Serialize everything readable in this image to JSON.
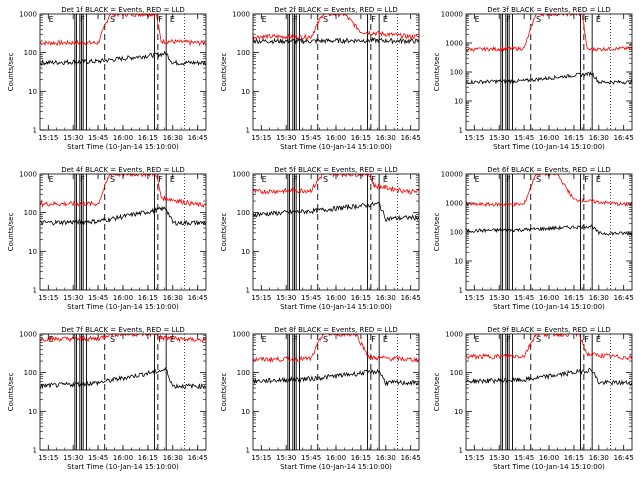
{
  "chart_data": [
    {
      "type": "line",
      "title": "Det 1f BLACK = Events, RED = LLD",
      "xlabel": "Start Time (10-Jan-14 15:10:00)",
      "ylabel": "Counts/sec",
      "yscale": "log",
      "ylim": [
        1,
        1000
      ],
      "x_ticks": [
        "15:15",
        "15:30",
        "15:45",
        "16:00",
        "16:15",
        "16:30",
        "16:45"
      ],
      "y_ticks": [
        "1",
        "10",
        "100",
        "1000"
      ],
      "markers": [
        {
          "label": "E",
          "time": "15:14"
        },
        {
          "label": "F",
          "time": "15:33"
        },
        {
          "label": "S",
          "time": "15:51"
        },
        {
          "label": "F",
          "time": "16:20"
        },
        {
          "label": "E",
          "time": "16:27"
        }
      ],
      "series": [
        {
          "name": "RED = LLD",
          "color": "#ff0000",
          "values": [
            {
              "time": "15:10",
              "value": 180
            },
            {
              "time": "15:45",
              "value": 180
            },
            {
              "time": "15:52",
              "value": 1000
            },
            {
              "time": "16:20",
              "value": 1000
            },
            {
              "time": "16:23",
              "value": 200
            },
            {
              "time": "16:45",
              "value": 180
            }
          ]
        },
        {
          "name": "BLACK = Events",
          "color": "#000000",
          "values": [
            {
              "time": "15:10",
              "value": 55
            },
            {
              "time": "15:45",
              "value": 60
            },
            {
              "time": "16:26",
              "value": 95
            },
            {
              "time": "16:30",
              "value": 55
            },
            {
              "time": "16:45",
              "value": 55
            }
          ]
        }
      ]
    },
    {
      "type": "line",
      "title": "Det 2f BLACK = Events, RED = LLD",
      "xlabel": "Start Time (10-Jan-14 15:10:00)",
      "ylabel": "Counts/sec",
      "yscale": "log",
      "ylim": [
        1,
        1000
      ],
      "x_ticks": [
        "15:15",
        "15:30",
        "15:45",
        "16:00",
        "16:15",
        "16:30",
        "16:45"
      ],
      "y_ticks": [
        "1",
        "10",
        "100",
        "1000"
      ],
      "markers": [
        {
          "label": "E",
          "time": "15:14"
        },
        {
          "label": "F",
          "time": "15:33"
        },
        {
          "label": "S",
          "time": "15:51"
        },
        {
          "label": "F",
          "time": "16:20"
        },
        {
          "label": "E",
          "time": "16:27"
        }
      ],
      "series": [
        {
          "name": "RED = LLD",
          "color": "#ff0000",
          "values": [
            {
              "time": "15:10",
              "value": 260
            },
            {
              "time": "15:45",
              "value": 260
            },
            {
              "time": "15:52",
              "value": 1000
            },
            {
              "time": "16:05",
              "value": 1000
            },
            {
              "time": "16:15",
              "value": 350
            },
            {
              "time": "16:45",
              "value": 260
            }
          ]
        },
        {
          "name": "BLACK = Events",
          "color": "#000000",
          "values": [
            {
              "time": "15:10",
              "value": 200
            },
            {
              "time": "15:45",
              "value": 200
            },
            {
              "time": "16:20",
              "value": 210
            },
            {
              "time": "16:45",
              "value": 200
            }
          ]
        }
      ]
    },
    {
      "type": "line",
      "title": "Det 3f BLACK = Events, RED = LLD",
      "xlabel": "Start Time (10-Jan-14 15:10:00)",
      "ylabel": "Counts/sec",
      "yscale": "log",
      "ylim": [
        1,
        10000
      ],
      "x_ticks": [
        "15:15",
        "15:30",
        "15:45",
        "16:00",
        "16:15",
        "16:30",
        "16:45"
      ],
      "y_ticks": [
        "1",
        "10",
        "100",
        "1000",
        "10000"
      ],
      "markers": [
        {
          "label": "E",
          "time": "15:14"
        },
        {
          "label": "F",
          "time": "15:33"
        },
        {
          "label": "S",
          "time": "15:51"
        },
        {
          "label": "F",
          "time": "16:20"
        },
        {
          "label": "E",
          "time": "16:27"
        }
      ],
      "series": [
        {
          "name": "RED = LLD",
          "color": "#ff0000",
          "values": [
            {
              "time": "15:10",
              "value": 600
            },
            {
              "time": "15:45",
              "value": 650
            },
            {
              "time": "15:52",
              "value": 10000
            },
            {
              "time": "16:20",
              "value": 10000
            },
            {
              "time": "16:23",
              "value": 600
            },
            {
              "time": "16:45",
              "value": 650
            }
          ]
        },
        {
          "name": "BLACK = Events",
          "color": "#000000",
          "values": [
            {
              "time": "15:10",
              "value": 45
            },
            {
              "time": "15:45",
              "value": 50
            },
            {
              "time": "16:26",
              "value": 90
            },
            {
              "time": "16:30",
              "value": 45
            },
            {
              "time": "16:45",
              "value": 45
            }
          ]
        }
      ]
    },
    {
      "type": "line",
      "title": "Det 4f BLACK = Events, RED = LLD",
      "xlabel": "Start Time (10-Jan-14 15:10:00)",
      "ylabel": "Counts/sec",
      "yscale": "log",
      "ylim": [
        1,
        1000
      ],
      "x_ticks": [
        "15:15",
        "15:30",
        "15:45",
        "16:00",
        "16:15",
        "16:30",
        "16:45"
      ],
      "y_ticks": [
        "1",
        "10",
        "100",
        "1000"
      ],
      "markers": [
        {
          "label": "E",
          "time": "15:14"
        },
        {
          "label": "F",
          "time": "15:33"
        },
        {
          "label": "S",
          "time": "15:51"
        },
        {
          "label": "F",
          "time": "16:20"
        },
        {
          "label": "E",
          "time": "16:27"
        }
      ],
      "series": [
        {
          "name": "RED = LLD",
          "color": "#ff0000",
          "values": [
            {
              "time": "15:10",
              "value": 170
            },
            {
              "time": "15:45",
              "value": 170
            },
            {
              "time": "15:52",
              "value": 1000
            },
            {
              "time": "16:20",
              "value": 1000
            },
            {
              "time": "16:23",
              "value": 250
            },
            {
              "time": "16:45",
              "value": 160
            }
          ]
        },
        {
          "name": "BLACK = Events",
          "color": "#000000",
          "values": [
            {
              "time": "15:10",
              "value": 55
            },
            {
              "time": "15:45",
              "value": 60
            },
            {
              "time": "16:26",
              "value": 130
            },
            {
              "time": "16:30",
              "value": 55
            },
            {
              "time": "16:45",
              "value": 55
            }
          ]
        }
      ]
    },
    {
      "type": "line",
      "title": "Det 5f BLACK = Events, RED = LLD",
      "xlabel": "Start Time (10-Jan-14 15:10:00)",
      "ylabel": "Counts/sec",
      "yscale": "log",
      "ylim": [
        1,
        1000
      ],
      "x_ticks": [
        "15:15",
        "15:30",
        "15:45",
        "16:00",
        "16:15",
        "16:30",
        "16:45"
      ],
      "y_ticks": [
        "1",
        "10",
        "100",
        "1000"
      ],
      "markers": [
        {
          "label": "E",
          "time": "15:14"
        },
        {
          "label": "F",
          "time": "15:33"
        },
        {
          "label": "S",
          "time": "15:51"
        },
        {
          "label": "F",
          "time": "16:20"
        },
        {
          "label": "E",
          "time": "16:27"
        }
      ],
      "series": [
        {
          "name": "RED = LLD",
          "color": "#ff0000",
          "values": [
            {
              "time": "15:10",
              "value": 350
            },
            {
              "time": "15:45",
              "value": 380
            },
            {
              "time": "15:52",
              "value": 1000
            },
            {
              "time": "16:20",
              "value": 1000
            },
            {
              "time": "16:23",
              "value": 500
            },
            {
              "time": "16:45",
              "value": 350
            }
          ]
        },
        {
          "name": "BLACK = Events",
          "color": "#000000",
          "values": [
            {
              "time": "15:10",
              "value": 90
            },
            {
              "time": "15:45",
              "value": 110
            },
            {
              "time": "16:26",
              "value": 170
            },
            {
              "time": "16:30",
              "value": 70
            },
            {
              "time": "16:45",
              "value": 75
            }
          ]
        }
      ]
    },
    {
      "type": "line",
      "title": "Det 6f BLACK = Events, RED = LLD",
      "xlabel": "Start Time (10-Jan-14 15:10:00)",
      "ylabel": "Counts/sec",
      "yscale": "log",
      "ylim": [
        1,
        10000
      ],
      "x_ticks": [
        "15:15",
        "15:30",
        "15:45",
        "16:00",
        "16:15",
        "16:30",
        "16:45"
      ],
      "y_ticks": [
        "1",
        "10",
        "100",
        "1000",
        "10000"
      ],
      "markers": [
        {
          "label": "E",
          "time": "15:14"
        },
        {
          "label": "F",
          "time": "15:33"
        },
        {
          "label": "S",
          "time": "15:51"
        },
        {
          "label": "F",
          "time": "16:20"
        },
        {
          "label": "E",
          "time": "16:27"
        }
      ],
      "series": [
        {
          "name": "RED = LLD",
          "color": "#ff0000",
          "values": [
            {
              "time": "15:10",
              "value": 900
            },
            {
              "time": "15:45",
              "value": 900
            },
            {
              "time": "15:52",
              "value": 10000
            },
            {
              "time": "16:05",
              "value": 10000
            },
            {
              "time": "16:15",
              "value": 1300
            },
            {
              "time": "16:45",
              "value": 900
            }
          ]
        },
        {
          "name": "BLACK = Events",
          "color": "#000000",
          "values": [
            {
              "time": "15:10",
              "value": 110
            },
            {
              "time": "15:45",
              "value": 120
            },
            {
              "time": "16:26",
              "value": 160
            },
            {
              "time": "16:30",
              "value": 90
            },
            {
              "time": "16:45",
              "value": 90
            }
          ]
        }
      ]
    },
    {
      "type": "line",
      "title": "Det 7f BLACK = Events, RED = LLD",
      "xlabel": "Start Time (10-Jan-14 15:10:00)",
      "ylabel": "Counts/sec",
      "yscale": "log",
      "ylim": [
        1,
        1000
      ],
      "x_ticks": [
        "15:15",
        "15:30",
        "15:45",
        "16:00",
        "16:15",
        "16:30",
        "16:45"
      ],
      "y_ticks": [
        "1",
        "10",
        "100",
        "1000"
      ],
      "markers": [
        {
          "label": "E",
          "time": "15:14"
        },
        {
          "label": "F",
          "time": "15:33"
        },
        {
          "label": "S",
          "time": "15:51"
        },
        {
          "label": "F",
          "time": "16:20"
        },
        {
          "label": "E",
          "time": "16:27"
        }
      ],
      "series": [
        {
          "name": "RED = LLD",
          "color": "#ff0000",
          "values": [
            {
              "time": "15:10",
              "value": 750
            },
            {
              "time": "15:45",
              "value": 750
            },
            {
              "time": "15:52",
              "value": 1000
            },
            {
              "time": "16:20",
              "value": 1000
            },
            {
              "time": "16:23",
              "value": 800
            },
            {
              "time": "16:45",
              "value": 700
            }
          ]
        },
        {
          "name": "BLACK = Events",
          "color": "#000000",
          "values": [
            {
              "time": "15:10",
              "value": 45
            },
            {
              "time": "15:45",
              "value": 55
            },
            {
              "time": "16:26",
              "value": 120
            },
            {
              "time": "16:30",
              "value": 45
            },
            {
              "time": "16:45",
              "value": 45
            }
          ]
        }
      ]
    },
    {
      "type": "line",
      "title": "Det 8f BLACK = Events, RED = LLD",
      "xlabel": "Start Time (10-Jan-14 15:10:00)",
      "ylabel": "Counts/sec",
      "yscale": "log",
      "ylim": [
        1,
        1000
      ],
      "x_ticks": [
        "15:15",
        "15:30",
        "15:45",
        "16:00",
        "16:15",
        "16:30",
        "16:45"
      ],
      "y_ticks": [
        "1",
        "10",
        "100",
        "1000"
      ],
      "markers": [
        {
          "label": "E",
          "time": "15:14"
        },
        {
          "label": "F",
          "time": "15:33"
        },
        {
          "label": "S",
          "time": "15:51"
        },
        {
          "label": "F",
          "time": "16:20"
        },
        {
          "label": "E",
          "time": "16:27"
        }
      ],
      "series": [
        {
          "name": "RED = LLD",
          "color": "#ff0000",
          "values": [
            {
              "time": "15:10",
              "value": 220
            },
            {
              "time": "15:45",
              "value": 230
            },
            {
              "time": "15:52",
              "value": 1000
            },
            {
              "time": "16:12",
              "value": 1000
            },
            {
              "time": "16:20",
              "value": 250
            },
            {
              "time": "16:45",
              "value": 220
            }
          ]
        },
        {
          "name": "BLACK = Events",
          "color": "#000000",
          "values": [
            {
              "time": "15:10",
              "value": 60
            },
            {
              "time": "15:45",
              "value": 70
            },
            {
              "time": "16:26",
              "value": 110
            },
            {
              "time": "16:30",
              "value": 55
            },
            {
              "time": "16:45",
              "value": 55
            }
          ]
        }
      ]
    },
    {
      "type": "line",
      "title": "Det 9f BLACK = Events, RED = LLD",
      "xlabel": "Start Time (10-Jan-14 15:10:00)",
      "ylabel": "Counts/sec",
      "yscale": "log",
      "ylim": [
        1,
        1000
      ],
      "x_ticks": [
        "15:15",
        "15:30",
        "15:45",
        "16:00",
        "16:15",
        "16:30",
        "16:45"
      ],
      "y_ticks": [
        "1",
        "10",
        "100",
        "1000"
      ],
      "markers": [
        {
          "label": "E",
          "time": "15:14"
        },
        {
          "label": "F",
          "time": "15:33"
        },
        {
          "label": "S",
          "time": "15:51"
        },
        {
          "label": "F",
          "time": "16:20"
        },
        {
          "label": "E",
          "time": "16:27"
        }
      ],
      "series": [
        {
          "name": "RED = LLD",
          "color": "#ff0000",
          "values": [
            {
              "time": "15:10",
              "value": 260
            },
            {
              "time": "15:45",
              "value": 270
            },
            {
              "time": "15:52",
              "value": 1000
            },
            {
              "time": "16:18",
              "value": 1000
            },
            {
              "time": "16:23",
              "value": 300
            },
            {
              "time": "16:45",
              "value": 250
            }
          ]
        },
        {
          "name": "BLACK = Events",
          "color": "#000000",
          "values": [
            {
              "time": "15:10",
              "value": 60
            },
            {
              "time": "15:45",
              "value": 65
            },
            {
              "time": "16:26",
              "value": 120
            },
            {
              "time": "16:30",
              "value": 55
            },
            {
              "time": "16:45",
              "value": 55
            }
          ]
        }
      ]
    }
  ]
}
